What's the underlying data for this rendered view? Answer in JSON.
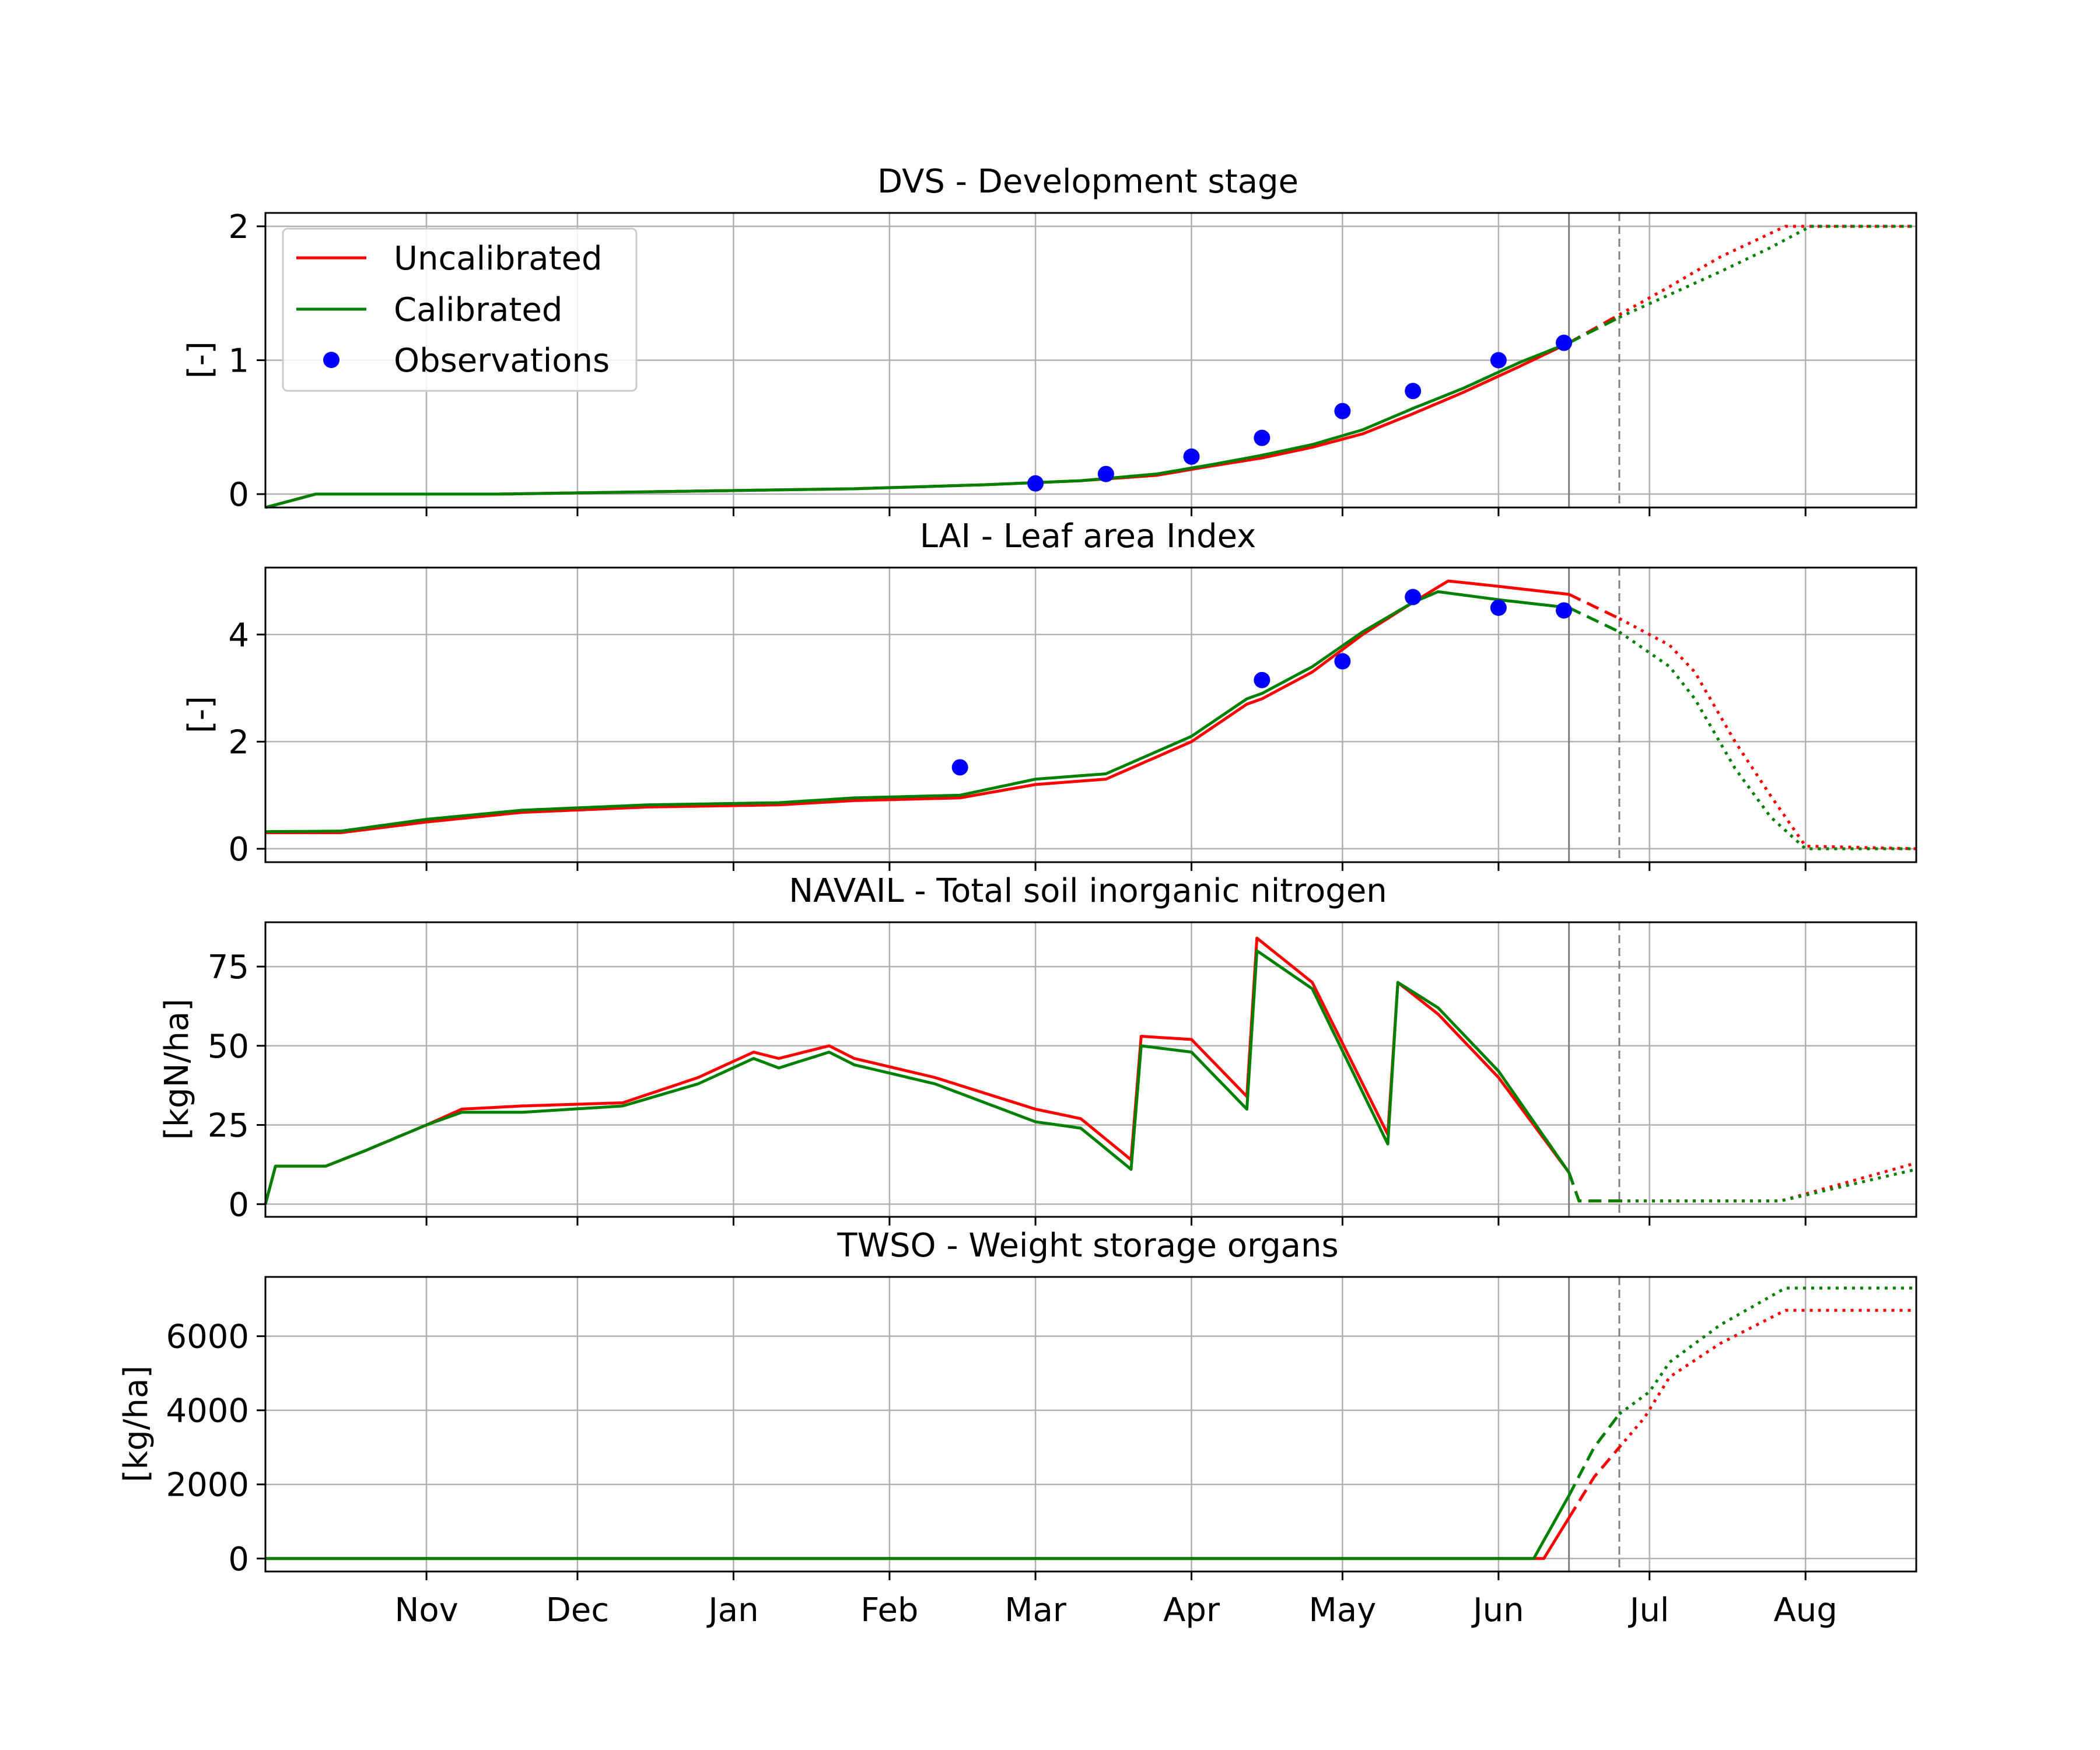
{
  "x_axis": {
    "start": "2023-09-30",
    "end": "2024-08-23",
    "ticks": [
      "2023-11-01",
      "2023-12-01",
      "2024-01-01",
      "2024-02-01",
      "2024-03-01",
      "2024-04-01",
      "2024-05-01",
      "2024-06-01",
      "2024-07-01",
      "2024-08-01"
    ],
    "tick_labels": [
      "Nov",
      "Dec",
      "Jan",
      "Feb",
      "Mar",
      "Apr",
      "May",
      "Jun",
      "Jul",
      "Aug"
    ],
    "marker_solid": "2024-06-15",
    "marker_dashed": "2024-06-25"
  },
  "colors": {
    "uncalibrated": "#ff0000",
    "calibrated": "#008000",
    "observations": "#0000ff",
    "grid": "#b0b0b0"
  },
  "legend": {
    "uncalibrated": "Uncalibrated",
    "calibrated": "Calibrated",
    "observations": "Observations",
    "placement": "upper-left of first panel"
  },
  "chart_data": [
    {
      "type": "line",
      "title": "DVS - Development stage",
      "ylabel": "[-]",
      "ylim": [
        -0.1,
        2.1
      ],
      "yticks": [
        0,
        1,
        2
      ],
      "ytick_labels": [
        "0",
        "1",
        "2"
      ],
      "grid": true,
      "series": [
        {
          "name": "Uncalibrated",
          "color": "#ff0000",
          "points": [
            [
              "2023-09-30",
              -0.1
            ],
            [
              "2023-10-10",
              0
            ],
            [
              "2023-11-15",
              0
            ],
            [
              "2023-12-20",
              0.02
            ],
            [
              "2024-01-25",
              0.04
            ],
            [
              "2024-02-20",
              0.07
            ],
            [
              "2024-03-10",
              0.1
            ],
            [
              "2024-03-25",
              0.14
            ],
            [
              "2024-04-05",
              0.21
            ],
            [
              "2024-04-15",
              0.27
            ],
            [
              "2024-04-25",
              0.35
            ],
            [
              "2024-05-05",
              0.45
            ],
            [
              "2024-05-15",
              0.6
            ],
            [
              "2024-05-25",
              0.76
            ],
            [
              "2024-06-05",
              0.95
            ],
            [
              "2024-06-15",
              1.13
            ],
            [
              "2024-06-25",
              1.34
            ],
            [
              "2024-07-05",
              1.55
            ],
            [
              "2024-07-15",
              1.77
            ],
            [
              "2024-07-28",
              2.0
            ],
            [
              "2024-08-23",
              2.0
            ]
          ]
        },
        {
          "name": "Calibrated",
          "color": "#008000",
          "points": [
            [
              "2023-09-30",
              -0.1
            ],
            [
              "2023-10-10",
              0
            ],
            [
              "2023-11-15",
              0
            ],
            [
              "2023-12-20",
              0.02
            ],
            [
              "2024-01-25",
              0.04
            ],
            [
              "2024-02-20",
              0.07
            ],
            [
              "2024-03-10",
              0.1
            ],
            [
              "2024-03-25",
              0.15
            ],
            [
              "2024-04-05",
              0.22
            ],
            [
              "2024-04-15",
              0.29
            ],
            [
              "2024-04-25",
              0.37
            ],
            [
              "2024-05-05",
              0.48
            ],
            [
              "2024-05-15",
              0.64
            ],
            [
              "2024-05-25",
              0.79
            ],
            [
              "2024-06-05",
              0.98
            ],
            [
              "2024-06-15",
              1.13
            ],
            [
              "2024-06-25",
              1.32
            ],
            [
              "2024-07-05",
              1.49
            ],
            [
              "2024-07-15",
              1.66
            ],
            [
              "2024-07-25",
              1.84
            ],
            [
              "2024-08-02",
              2.0
            ],
            [
              "2024-08-23",
              2.0
            ]
          ]
        }
      ],
      "observations": [
        [
          "2024-03-01",
          0.08
        ],
        [
          "2024-03-15",
          0.15
        ],
        [
          "2024-04-01",
          0.28
        ],
        [
          "2024-04-15",
          0.42
        ],
        [
          "2024-05-01",
          0.62
        ],
        [
          "2024-05-15",
          0.77
        ],
        [
          "2024-06-01",
          1.0
        ],
        [
          "2024-06-14",
          1.13
        ]
      ]
    },
    {
      "type": "line",
      "title": "LAI - Leaf area Index",
      "ylabel": "[-]",
      "ylim": [
        -0.25,
        5.25
      ],
      "yticks": [
        0,
        2,
        4
      ],
      "ytick_labels": [
        "0",
        "2",
        "4"
      ],
      "grid": true,
      "series": [
        {
          "name": "Uncalibrated",
          "color": "#ff0000",
          "points": [
            [
              "2023-09-30",
              0.3
            ],
            [
              "2023-10-15",
              0.3
            ],
            [
              "2023-11-01",
              0.5
            ],
            [
              "2023-11-20",
              0.68
            ],
            [
              "2023-12-15",
              0.78
            ],
            [
              "2024-01-10",
              0.82
            ],
            [
              "2024-01-25",
              0.9
            ],
            [
              "2024-02-15",
              0.95
            ],
            [
              "2024-03-01",
              1.2
            ],
            [
              "2024-03-15",
              1.3
            ],
            [
              "2024-04-01",
              2.0
            ],
            [
              "2024-04-12",
              2.7
            ],
            [
              "2024-04-15",
              2.8
            ],
            [
              "2024-04-25",
              3.3
            ],
            [
              "2024-05-05",
              4.0
            ],
            [
              "2024-05-15",
              4.6
            ],
            [
              "2024-05-22",
              5.0
            ],
            [
              "2024-06-01",
              4.9
            ],
            [
              "2024-06-15",
              4.75
            ],
            [
              "2024-06-25",
              4.3
            ],
            [
              "2024-07-05",
              3.8
            ],
            [
              "2024-07-10",
              3.3
            ],
            [
              "2024-07-18",
              2.0
            ],
            [
              "2024-07-25",
              1.0
            ],
            [
              "2024-08-01",
              0.05
            ],
            [
              "2024-08-23",
              0.0
            ]
          ]
        },
        {
          "name": "Calibrated",
          "color": "#008000",
          "points": [
            [
              "2023-09-30",
              0.32
            ],
            [
              "2023-10-15",
              0.33
            ],
            [
              "2023-11-01",
              0.55
            ],
            [
              "2023-11-20",
              0.72
            ],
            [
              "2023-12-15",
              0.82
            ],
            [
              "2024-01-10",
              0.86
            ],
            [
              "2024-01-25",
              0.95
            ],
            [
              "2024-02-15",
              1.0
            ],
            [
              "2024-03-01",
              1.3
            ],
            [
              "2024-03-15",
              1.4
            ],
            [
              "2024-04-01",
              2.1
            ],
            [
              "2024-04-12",
              2.8
            ],
            [
              "2024-04-15",
              2.9
            ],
            [
              "2024-04-25",
              3.4
            ],
            [
              "2024-05-05",
              4.05
            ],
            [
              "2024-05-15",
              4.6
            ],
            [
              "2024-05-20",
              4.8
            ],
            [
              "2024-06-01",
              4.65
            ],
            [
              "2024-06-15",
              4.5
            ],
            [
              "2024-06-25",
              4.05
            ],
            [
              "2024-07-05",
              3.4
            ],
            [
              "2024-07-10",
              2.8
            ],
            [
              "2024-07-18",
              1.5
            ],
            [
              "2024-07-25",
              0.6
            ],
            [
              "2024-08-01",
              0.0
            ],
            [
              "2024-08-23",
              0.0
            ]
          ]
        }
      ],
      "observations": [
        [
          "2024-02-15",
          1.52
        ],
        [
          "2024-04-15",
          3.15
        ],
        [
          "2024-05-01",
          3.5
        ],
        [
          "2024-05-15",
          4.7
        ],
        [
          "2024-06-01",
          4.5
        ],
        [
          "2024-06-14",
          4.45
        ]
      ]
    },
    {
      "type": "line",
      "title": "NAVAIL - Total soil inorganic nitrogen",
      "ylabel": "[kgN/ha]",
      "ylim": [
        -4,
        89
      ],
      "yticks": [
        0,
        25,
        50,
        75
      ],
      "ytick_labels": [
        "0",
        "25",
        "50",
        "75"
      ],
      "grid": true,
      "series": [
        {
          "name": "Uncalibrated",
          "color": "#ff0000",
          "points": [
            [
              "2023-09-30",
              0
            ],
            [
              "2023-10-02",
              12
            ],
            [
              "2023-10-12",
              12
            ],
            [
              "2023-10-20",
              17
            ],
            [
              "2023-11-01",
              25
            ],
            [
              "2023-11-08",
              30
            ],
            [
              "2023-11-20",
              31
            ],
            [
              "2023-12-10",
              32
            ],
            [
              "2023-12-25",
              40
            ],
            [
              "2024-01-05",
              48
            ],
            [
              "2024-01-10",
              46
            ],
            [
              "2024-01-20",
              50
            ],
            [
              "2024-01-25",
              46
            ],
            [
              "2024-02-10",
              40
            ],
            [
              "2024-03-01",
              30
            ],
            [
              "2024-03-10",
              27
            ],
            [
              "2024-03-20",
              14
            ],
            [
              "2024-03-22",
              53
            ],
            [
              "2024-04-01",
              52
            ],
            [
              "2024-04-12",
              34
            ],
            [
              "2024-04-14",
              84
            ],
            [
              "2024-04-25",
              70
            ],
            [
              "2024-05-10",
              22
            ],
            [
              "2024-05-12",
              70
            ],
            [
              "2024-05-20",
              60
            ],
            [
              "2024-06-01",
              40
            ],
            [
              "2024-06-15",
              10
            ],
            [
              "2024-06-17",
              1
            ],
            [
              "2024-07-15",
              1
            ],
            [
              "2024-07-27",
              1
            ],
            [
              "2024-08-23",
              13
            ]
          ]
        },
        {
          "name": "Calibrated",
          "color": "#008000",
          "points": [
            [
              "2023-09-30",
              0
            ],
            [
              "2023-10-02",
              12
            ],
            [
              "2023-10-12",
              12
            ],
            [
              "2023-10-20",
              17
            ],
            [
              "2023-11-01",
              25
            ],
            [
              "2023-11-08",
              29
            ],
            [
              "2023-11-20",
              29
            ],
            [
              "2023-12-10",
              31
            ],
            [
              "2023-12-25",
              38
            ],
            [
              "2024-01-05",
              46
            ],
            [
              "2024-01-10",
              43
            ],
            [
              "2024-01-20",
              48
            ],
            [
              "2024-01-25",
              44
            ],
            [
              "2024-02-10",
              38
            ],
            [
              "2024-03-01",
              26
            ],
            [
              "2024-03-10",
              24
            ],
            [
              "2024-03-20",
              11
            ],
            [
              "2024-03-22",
              50
            ],
            [
              "2024-04-01",
              48
            ],
            [
              "2024-04-12",
              30
            ],
            [
              "2024-04-14",
              80
            ],
            [
              "2024-04-25",
              68
            ],
            [
              "2024-05-10",
              19
            ],
            [
              "2024-05-12",
              70
            ],
            [
              "2024-05-20",
              62
            ],
            [
              "2024-06-01",
              42
            ],
            [
              "2024-06-15",
              10
            ],
            [
              "2024-06-17",
              1
            ],
            [
              "2024-07-15",
              1
            ],
            [
              "2024-07-27",
              1
            ],
            [
              "2024-08-23",
              11
            ]
          ]
        }
      ]
    },
    {
      "type": "line",
      "title": "TWSO - Weight storage organs",
      "ylabel": "[kg/ha]",
      "ylim": [
        -350,
        7600
      ],
      "yticks": [
        0,
        2000,
        4000,
        6000
      ],
      "ytick_labels": [
        "0",
        "2000",
        "4000",
        "6000"
      ],
      "grid": true,
      "series": [
        {
          "name": "Uncalibrated",
          "color": "#ff0000",
          "points": [
            [
              "2023-09-30",
              0
            ],
            [
              "2024-06-10",
              0
            ],
            [
              "2024-06-15",
              1100
            ],
            [
              "2024-06-20",
              2200
            ],
            [
              "2024-06-25",
              3000
            ],
            [
              "2024-06-30",
              3800
            ],
            [
              "2024-07-05",
              4900
            ],
            [
              "2024-07-15",
              5800
            ],
            [
              "2024-07-28",
              6700
            ],
            [
              "2024-08-23",
              6700
            ]
          ]
        },
        {
          "name": "Calibrated",
          "color": "#008000",
          "points": [
            [
              "2023-09-30",
              0
            ],
            [
              "2024-06-08",
              0
            ],
            [
              "2024-06-15",
              1700
            ],
            [
              "2024-06-20",
              3000
            ],
            [
              "2024-06-25",
              3900
            ],
            [
              "2024-07-01",
              4500
            ],
            [
              "2024-07-05",
              5300
            ],
            [
              "2024-07-15",
              6300
            ],
            [
              "2024-07-28",
              7300
            ],
            [
              "2024-08-23",
              7300
            ]
          ]
        }
      ]
    }
  ]
}
